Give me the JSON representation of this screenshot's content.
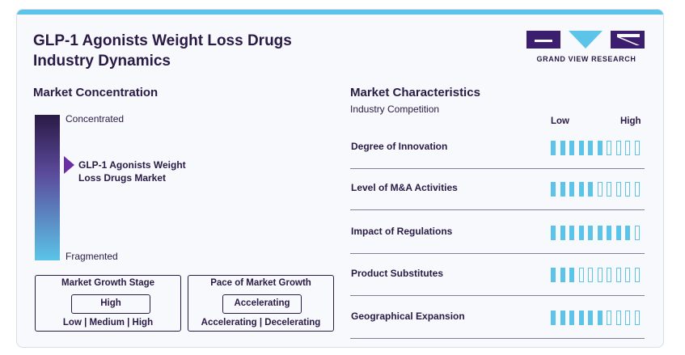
{
  "title_line1": "GLP-1 Agonists Weight Loss Drugs",
  "title_line2": "Industry Dynamics",
  "logo_text": "GRAND VIEW RESEARCH",
  "colors": {
    "accent": "#5bc4e8",
    "dark": "#2a1a45",
    "marker": "#6b2fa3"
  },
  "concentration": {
    "heading": "Market Concentration",
    "top_label": "Concentrated",
    "bottom_label": "Fragmented",
    "market_line1": "GLP-1 Agonists Weight",
    "market_line2": "Loss Drugs Market",
    "position_from_top": 0.35
  },
  "growth_stage": {
    "title": "Market Growth Stage",
    "value": "High",
    "options": "Low | Medium | High"
  },
  "growth_pace": {
    "title": "Pace of Market Growth",
    "value": "Accelerating",
    "options": "Accelerating | Decelerating"
  },
  "characteristics": {
    "heading": "Market Characteristics",
    "subheading": "Industry Competition",
    "low_label": "Low",
    "high_label": "High",
    "total_segments": 10,
    "rows": [
      {
        "label": "Degree of Innovation",
        "filled": 6
      },
      {
        "label": "Level of M&A Activities",
        "filled": 5
      },
      {
        "label": "Impact of Regulations",
        "filled": 9
      },
      {
        "label": "Product Substitutes",
        "filled": 3
      },
      {
        "label": "Geographical Expansion",
        "filled": 6
      }
    ]
  }
}
